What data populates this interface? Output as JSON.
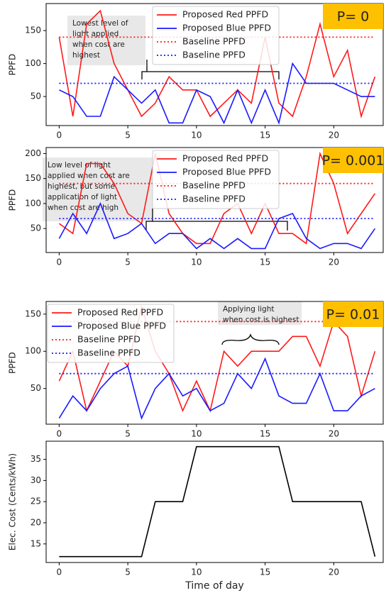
{
  "chart_data": [
    {
      "type": "line",
      "ylabel": "PPFD",
      "tag": "P= 0",
      "annotation": [
        "Lowest level of",
        "light applied",
        "when cost are",
        "highest"
      ],
      "legend": "upper center",
      "x": [
        0,
        1,
        2,
        3,
        4,
        5,
        6,
        7,
        8,
        9,
        10,
        11,
        12,
        13,
        14,
        15,
        16,
        17,
        18,
        19,
        20,
        21,
        22,
        23
      ],
      "xlim": [
        -0.95,
        23.6
      ],
      "xticks": [
        0,
        5,
        10,
        15,
        20
      ],
      "ylim": [
        6,
        191
      ],
      "yticks": [
        50,
        100,
        150
      ],
      "series": [
        {
          "name": "Proposed Red PPFD",
          "color": "#ff1a1a",
          "style": "solid",
          "values": [
            140,
            20,
            160,
            180,
            100,
            60,
            20,
            40,
            80,
            60,
            60,
            20,
            40,
            60,
            40,
            140,
            40,
            20,
            80,
            160,
            80,
            120,
            20,
            80
          ]
        },
        {
          "name": "Proposed Blue PPFD",
          "color": "#1a1aff",
          "style": "solid",
          "values": [
            60,
            50,
            20,
            20,
            80,
            60,
            40,
            60,
            10,
            10,
            60,
            50,
            10,
            60,
            10,
            60,
            10,
            100,
            70,
            70,
            70,
            60,
            50,
            50
          ]
        },
        {
          "name": "Baseline PPFD",
          "color": "#ff1a1a",
          "style": "dotted",
          "values": [
            140,
            140,
            140,
            140,
            140,
            140,
            140,
            140,
            140,
            140,
            140,
            140,
            140,
            140,
            140,
            140,
            140,
            140,
            140,
            140,
            140,
            140,
            140,
            140
          ]
        },
        {
          "name": "Baseline PPFD",
          "color": "#1a1aff",
          "style": "dotted",
          "values": [
            70,
            70,
            70,
            70,
            70,
            70,
            70,
            70,
            70,
            70,
            70,
            70,
            70,
            70,
            70,
            70,
            70,
            70,
            70,
            70,
            70,
            70,
            70,
            70
          ]
        }
      ]
    },
    {
      "type": "line",
      "ylabel": "PPFD",
      "tag": "P= 0.001",
      "annotation": [
        "Low level of light",
        "applied when cost are",
        "highest, but some",
        "application of light",
        "when cost are high"
      ],
      "legend": "upper center",
      "x": [
        0,
        1,
        2,
        3,
        4,
        5,
        6,
        7,
        8,
        9,
        10,
        11,
        12,
        13,
        14,
        15,
        16,
        17,
        18,
        19,
        20,
        21,
        22,
        23
      ],
      "xlim": [
        -0.95,
        23.6
      ],
      "xticks": [
        0,
        5,
        10,
        15,
        20
      ],
      "ylim": [
        2,
        212
      ],
      "yticks": [
        50,
        100,
        150,
        200
      ],
      "series": [
        {
          "name": "Proposed Red PPFD",
          "color": "#ff1a1a",
          "style": "solid",
          "values": [
            60,
            40,
            180,
            180,
            140,
            80,
            60,
            200,
            80,
            40,
            20,
            20,
            80,
            100,
            40,
            100,
            40,
            40,
            20,
            200,
            140,
            40,
            80,
            120
          ]
        },
        {
          "name": "Proposed Blue PPFD",
          "color": "#1a1aff",
          "style": "solid",
          "values": [
            30,
            80,
            40,
            100,
            30,
            40,
            60,
            20,
            40,
            40,
            10,
            30,
            10,
            30,
            10,
            10,
            70,
            80,
            30,
            10,
            20,
            20,
            10,
            50
          ]
        },
        {
          "name": "Baseline PPFD",
          "color": "#ff1a1a",
          "style": "dotted",
          "values": [
            140,
            140,
            140,
            140,
            140,
            140,
            140,
            140,
            140,
            140,
            140,
            140,
            140,
            140,
            140,
            140,
            140,
            140,
            140,
            140,
            140,
            140,
            140,
            140
          ]
        },
        {
          "name": "Baseline PPFD",
          "color": "#1a1aff",
          "style": "dotted",
          "values": [
            70,
            70,
            70,
            70,
            70,
            70,
            70,
            70,
            70,
            70,
            70,
            70,
            70,
            70,
            70,
            70,
            70,
            70,
            70,
            70,
            70,
            70,
            70,
            70
          ]
        }
      ]
    },
    {
      "type": "line",
      "ylabel": "PPFD",
      "tag": "P= 0.01",
      "annotation": [
        "Applying light",
        "when cost is highest"
      ],
      "legend": "upper left",
      "x": [
        0,
        1,
        2,
        3,
        4,
        5,
        6,
        7,
        8,
        9,
        10,
        11,
        12,
        13,
        14,
        15,
        16,
        17,
        18,
        19,
        20,
        21,
        22,
        23
      ],
      "xlim": [
        -0.95,
        23.6
      ],
      "xticks": [
        0,
        5,
        10,
        15,
        20
      ],
      "ylim": [
        2,
        167
      ],
      "yticks": [
        50,
        100,
        150
      ],
      "series": [
        {
          "name": "Proposed Red PPFD",
          "color": "#ff1a1a",
          "style": "solid",
          "values": [
            60,
            100,
            20,
            60,
            100,
            80,
            160,
            100,
            70,
            20,
            60,
            20,
            100,
            80,
            100,
            100,
            100,
            120,
            120,
            80,
            140,
            120,
            40,
            100
          ]
        },
        {
          "name": "Proposed Blue PPFD",
          "color": "#1a1aff",
          "style": "solid",
          "values": [
            10,
            40,
            20,
            50,
            70,
            80,
            10,
            50,
            70,
            40,
            50,
            20,
            30,
            70,
            50,
            90,
            40,
            30,
            30,
            70,
            20,
            20,
            40,
            50
          ]
        },
        {
          "name": "Baseline PPFD",
          "color": "#ff1a1a",
          "style": "dotted",
          "values": [
            140,
            140,
            140,
            140,
            140,
            140,
            140,
            140,
            140,
            140,
            140,
            140,
            140,
            140,
            140,
            140,
            140,
            140,
            140,
            140,
            140,
            140,
            140,
            140
          ]
        },
        {
          "name": "Baseline PPFD",
          "color": "#1a1aff",
          "style": "dotted",
          "values": [
            70,
            70,
            70,
            70,
            70,
            70,
            70,
            70,
            70,
            70,
            70,
            70,
            70,
            70,
            70,
            70,
            70,
            70,
            70,
            70,
            70,
            70,
            70,
            70
          ]
        }
      ]
    },
    {
      "type": "line",
      "ylabel": "Elec. Cost (Cents/kWh)",
      "xlabel": "Time of day",
      "x": [
        0,
        1,
        2,
        3,
        4,
        5,
        6,
        7,
        8,
        9,
        10,
        11,
        12,
        13,
        14,
        15,
        16,
        17,
        18,
        19,
        20,
        21,
        22,
        23
      ],
      "xlim": [
        -0.95,
        23.6
      ],
      "xticks": [
        0,
        5,
        10,
        15,
        20
      ],
      "ylim": [
        10.6,
        39.3
      ],
      "yticks": [
        15,
        20,
        25,
        30,
        35
      ],
      "series": [
        {
          "color": "#000000",
          "style": "solid",
          "values": [
            12,
            12,
            12,
            12,
            12,
            12,
            12,
            25,
            25,
            25,
            38,
            38,
            38,
            38,
            38,
            38,
            38,
            25,
            25,
            25,
            25,
            25,
            25,
            12
          ]
        }
      ]
    }
  ]
}
